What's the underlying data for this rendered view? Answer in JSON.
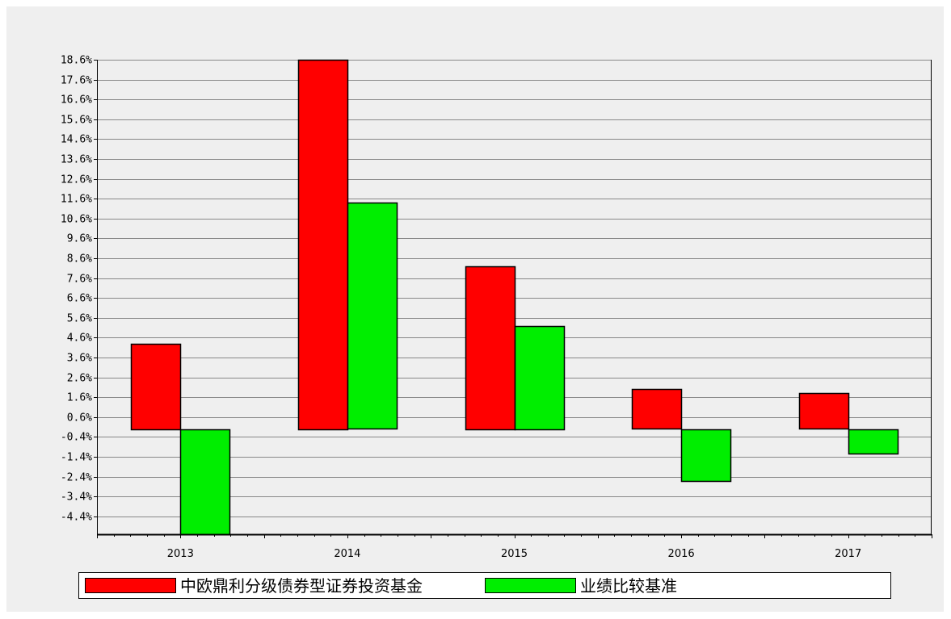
{
  "chart_data": {
    "type": "bar",
    "categories": [
      "2013",
      "2014",
      "2015",
      "2016",
      "2017"
    ],
    "series": [
      {
        "name": "中欧鼎利分级债券型证券投资基金",
        "color": "#ff0000",
        "values": [
          4.3,
          18.6,
          8.2,
          2.0,
          1.8
        ]
      },
      {
        "name": "业绩比较基准",
        "color": "#00ee00",
        "values": [
          -5.3,
          11.4,
          5.2,
          -2.6,
          -1.2
        ]
      }
    ],
    "yticks": [
      "18.6%",
      "17.6%",
      "16.6%",
      "15.6%",
      "14.6%",
      "13.6%",
      "12.6%",
      "11.6%",
      "10.6%",
      "9.6%",
      "8.6%",
      "7.6%",
      "6.6%",
      "5.6%",
      "4.6%",
      "3.6%",
      "2.6%",
      "1.6%",
      "0.6%",
      "-0.4%",
      "-1.4%",
      "-2.4%",
      "-3.4%",
      "-4.4%"
    ],
    "ylim": [
      -5.3,
      18.6
    ],
    "grid": true,
    "legend_position": "bottom",
    "title": "",
    "xlabel": "",
    "ylabel": ""
  }
}
